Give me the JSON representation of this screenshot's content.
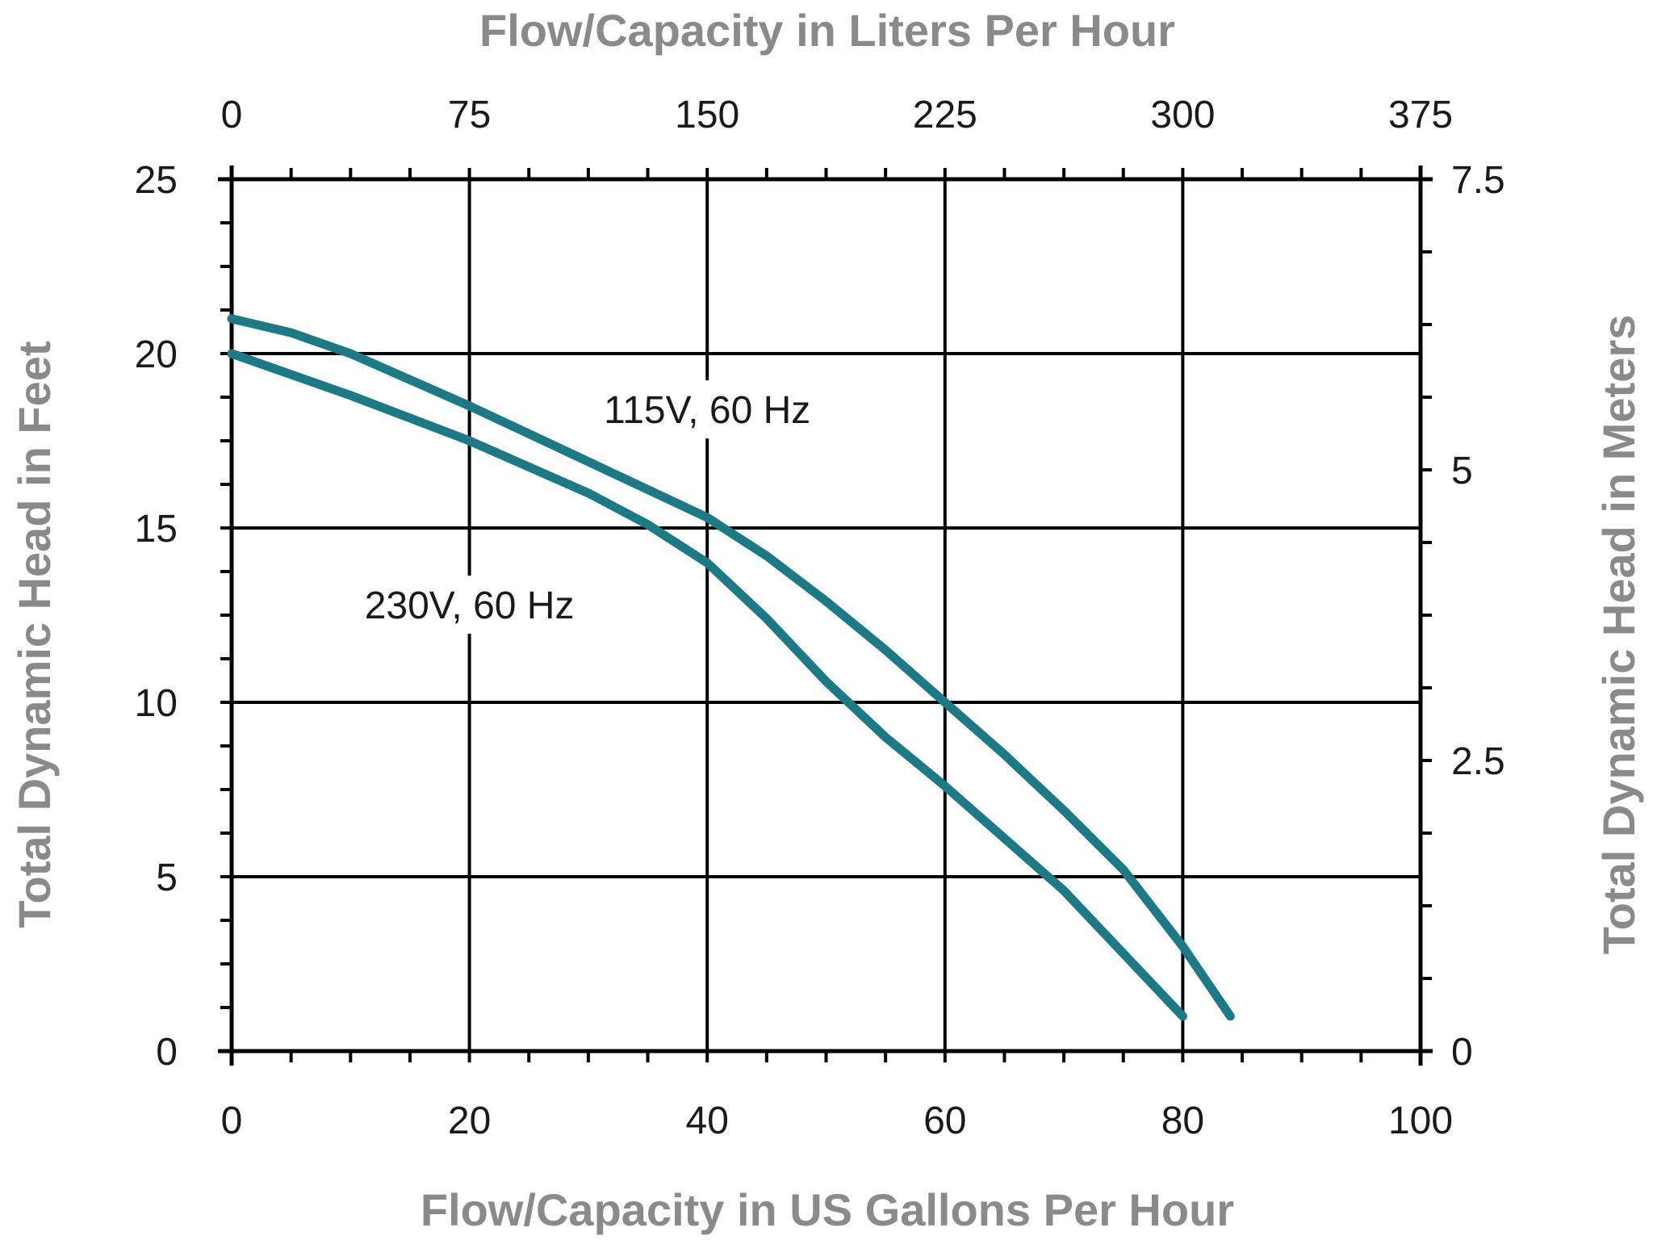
{
  "colors": {
    "series": "#1b7a86",
    "grid": "#000000",
    "axis_title": "#8a8a8a",
    "label_bg": "#ffffff"
  },
  "chart_data": {
    "type": "line",
    "title": "",
    "xlabel": "Flow/Capacity in US Gallons Per Hour",
    "ylabel": "Total Dynamic Head in Feet",
    "x2label": "Flow/Capacity in Liters Per Hour",
    "y2label": "Total Dynamic Head in Meters",
    "xlim": [
      0,
      100
    ],
    "ylim": [
      0,
      25
    ],
    "x2lim": [
      0,
      375
    ],
    "y2lim": [
      0,
      7.5
    ],
    "xticks": [
      0,
      20,
      40,
      60,
      80,
      100
    ],
    "yticks": [
      0,
      5,
      10,
      15,
      20,
      25
    ],
    "x2ticks": [
      0,
      75,
      150,
      225,
      300,
      375
    ],
    "y2ticks": [
      0,
      2.5,
      5,
      7.5
    ],
    "xtick_labels": [
      "0",
      "20",
      "40",
      "60",
      "80",
      "100"
    ],
    "ytick_labels": [
      "0",
      "5",
      "10",
      "15",
      "20",
      "25"
    ],
    "x2tick_labels": [
      "0",
      "75",
      "150",
      "225",
      "300",
      "375"
    ],
    "y2tick_labels": [
      "0",
      "2.5",
      "5",
      "7.5"
    ],
    "grid": true,
    "legend": "none",
    "series": [
      {
        "name": "115V, 60 Hz",
        "x": [
          0,
          5,
          10,
          20,
          30,
          40,
          45,
          50,
          55,
          60,
          65,
          70,
          75,
          80,
          84
        ],
        "y": [
          21,
          20.6,
          20.0,
          18.5,
          16.9,
          15.3,
          14.2,
          12.9,
          11.5,
          10.0,
          8.5,
          6.9,
          5.2,
          3.0,
          1.0
        ]
      },
      {
        "name": "230V, 60 Hz",
        "x": [
          0,
          10,
          20,
          30,
          35,
          40,
          45,
          50,
          55,
          60,
          70,
          80
        ],
        "y": [
          20,
          18.8,
          17.5,
          16.0,
          15.1,
          14.0,
          12.4,
          10.6,
          9.0,
          7.6,
          4.6,
          1.0
        ]
      }
    ],
    "annotations": [
      {
        "text": "115V, 60 Hz",
        "x": 40,
        "y": 18.4
      },
      {
        "text": "230V, 60 Hz",
        "x": 20,
        "y": 12.8
      }
    ]
  }
}
